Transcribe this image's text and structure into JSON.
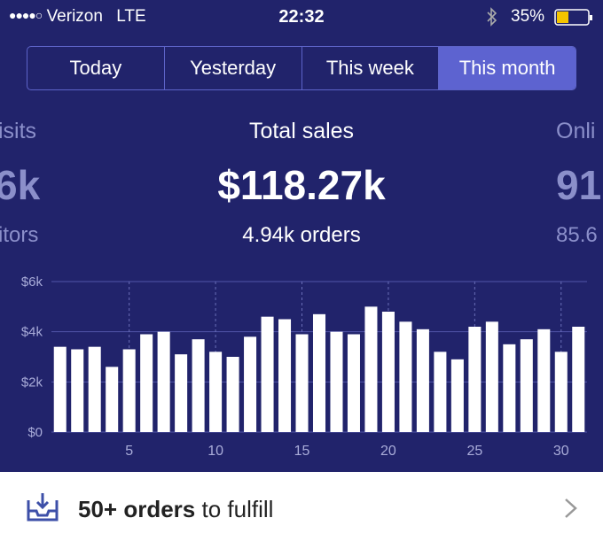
{
  "status_bar": {
    "carrier": "Verizon",
    "network": "LTE",
    "time": "22:32",
    "battery": "35%"
  },
  "tabs": [
    "Today",
    "Yesterday",
    "This week",
    "This month"
  ],
  "summary": {
    "title": "Total sales",
    "value": "$118.27k",
    "subtitle": "4.94k orders"
  },
  "side_left": {
    "title": "isits",
    "value": "6k",
    "subtitle": "itors"
  },
  "side_right": {
    "title": "Onli",
    "value": "91",
    "subtitle": "85.6"
  },
  "chart_data": {
    "type": "bar",
    "x": [
      1,
      2,
      3,
      4,
      5,
      6,
      7,
      8,
      9,
      10,
      11,
      12,
      13,
      14,
      15,
      16,
      17,
      18,
      19,
      20,
      21,
      22,
      23,
      24,
      25,
      26,
      27,
      28,
      29,
      30,
      31
    ],
    "values": [
      3400,
      3300,
      3400,
      2600,
      3300,
      3900,
      4000,
      3100,
      3700,
      3200,
      3000,
      3800,
      4600,
      4500,
      3900,
      4700,
      4000,
      3900,
      5000,
      4800,
      4400,
      4100,
      3200,
      2900,
      4200,
      4400,
      3500,
      3700,
      4100,
      3200,
      4200
    ],
    "color": "#ffffff",
    "xlim": [
      0.5,
      31.5
    ],
    "xticks": [
      5,
      10,
      15,
      20,
      25,
      30
    ],
    "ylim": [
      0,
      6000
    ],
    "yticks": [
      {
        "value": 0,
        "label": "$0"
      },
      {
        "value": 2000,
        "label": "$2k"
      },
      {
        "value": 4000,
        "label": "$4k"
      },
      {
        "value": 6000,
        "label": "$6k"
      }
    ],
    "grid": true
  },
  "footer": {
    "bold": "50+ orders",
    "rest": "to fulfill"
  }
}
